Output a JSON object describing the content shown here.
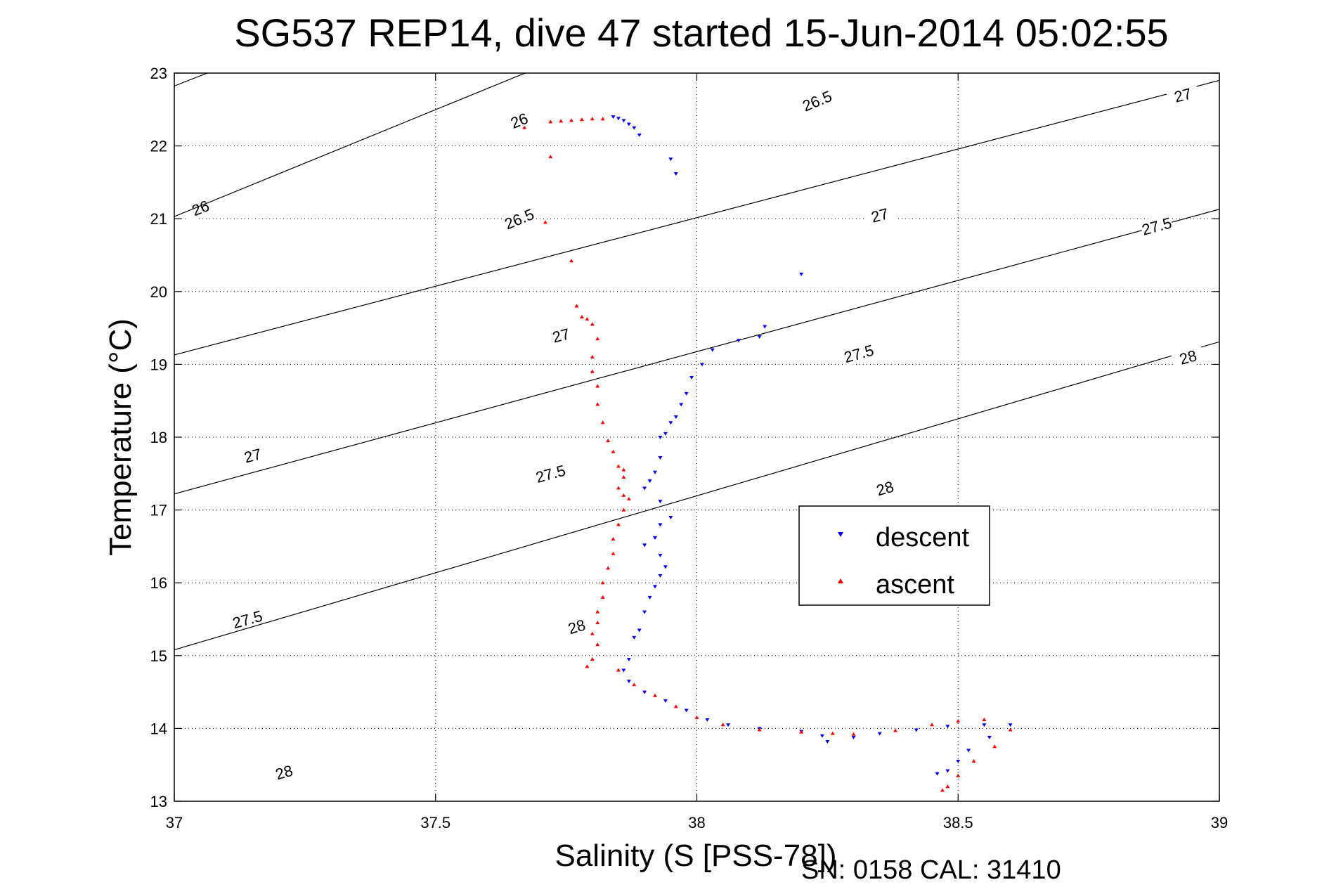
{
  "chart_data": {
    "type": "scatter",
    "title": "SG537 REP14, dive 47 started 15-Jun-2014 05:02:55",
    "xlabel": "Salinity (S [PSS-78])",
    "ylabel": "Temperature (°C)",
    "xlim": [
      37,
      39
    ],
    "ylim": [
      13,
      23
    ],
    "xticks": [
      37,
      37.5,
      38,
      38.5,
      39
    ],
    "xtick_labels": [
      "37",
      "37.5",
      "38",
      "38.5",
      "39"
    ],
    "yticks": [
      13,
      14,
      15,
      16,
      17,
      18,
      19,
      20,
      21,
      22,
      23
    ],
    "ytick_labels": [
      "13",
      "14",
      "15",
      "16",
      "17",
      "18",
      "19",
      "20",
      "21",
      "22",
      "23"
    ],
    "grid": true,
    "legend": {
      "position": "center-right",
      "entries": [
        "descent",
        "ascent"
      ]
    },
    "footer": "SN: 0158  CAL: 31410",
    "colors": {
      "descent": "#0000ff",
      "ascent": "#ff0000",
      "contour": "#000000"
    },
    "contours": [
      {
        "level": "26",
        "points": [
          [
            37.0,
            22.823
          ],
          [
            39.0,
            28.453
          ]
        ],
        "labels": [
          [
            37.66,
            22.35
          ],
          [
            37.05,
            21.15
          ]
        ]
      },
      {
        "level": "26.5",
        "points": [
          [
            37.0,
            21.03
          ],
          [
            39.0,
            26.9
          ]
        ],
        "labels": [
          [
            38.23,
            22.62
          ],
          [
            37.66,
            21.0
          ]
        ]
      },
      {
        "level": "27",
        "points": [
          [
            37.0,
            19.13
          ],
          [
            39.0,
            22.9
          ]
        ],
        "labels": [
          [
            38.93,
            22.7
          ],
          [
            38.35,
            21.05
          ],
          [
            37.74,
            19.4
          ],
          [
            37.15,
            17.75
          ]
        ]
      },
      {
        "level": "27.5",
        "points": [
          [
            37.0,
            17.22
          ],
          [
            39.0,
            21.13
          ]
        ],
        "labels": [
          [
            38.88,
            20.9
          ],
          [
            38.31,
            19.15
          ],
          [
            37.72,
            17.5
          ],
          [
            37.14,
            15.5
          ]
        ]
      },
      {
        "level": "28",
        "points": [
          [
            37.0,
            15.08
          ],
          [
            39.0,
            19.31
          ]
        ],
        "labels": [
          [
            38.94,
            19.1
          ],
          [
            38.36,
            17.3
          ],
          [
            37.77,
            15.4
          ],
          [
            37.21,
            13.4
          ]
        ]
      }
    ],
    "series": [
      {
        "name": "descent",
        "marker": "triangle-down",
        "points": [
          [
            37.84,
            22.4
          ],
          [
            37.85,
            22.38
          ],
          [
            37.86,
            22.35
          ],
          [
            37.87,
            22.3
          ],
          [
            37.88,
            22.25
          ],
          [
            37.89,
            22.15
          ],
          [
            37.95,
            21.82
          ],
          [
            37.96,
            21.62
          ],
          [
            38.2,
            20.24
          ],
          [
            38.13,
            19.52
          ],
          [
            38.12,
            19.38
          ],
          [
            38.08,
            19.33
          ],
          [
            38.03,
            19.2
          ],
          [
            38.01,
            19.0
          ],
          [
            37.99,
            18.82
          ],
          [
            37.98,
            18.6
          ],
          [
            37.97,
            18.45
          ],
          [
            37.96,
            18.28
          ],
          [
            37.95,
            18.2
          ],
          [
            37.94,
            18.05
          ],
          [
            37.93,
            18.0
          ],
          [
            37.93,
            17.72
          ],
          [
            37.92,
            17.52
          ],
          [
            37.91,
            17.4
          ],
          [
            37.9,
            17.3
          ],
          [
            37.93,
            17.12
          ],
          [
            37.95,
            16.9
          ],
          [
            37.93,
            16.8
          ],
          [
            37.92,
            16.62
          ],
          [
            37.9,
            16.52
          ],
          [
            37.93,
            16.38
          ],
          [
            37.94,
            16.22
          ],
          [
            37.93,
            16.1
          ],
          [
            37.92,
            15.95
          ],
          [
            37.91,
            15.8
          ],
          [
            37.9,
            15.6
          ],
          [
            37.89,
            15.35
          ],
          [
            37.88,
            15.25
          ],
          [
            37.87,
            14.95
          ],
          [
            37.86,
            14.8
          ],
          [
            37.87,
            14.65
          ],
          [
            37.9,
            14.5
          ],
          [
            37.94,
            14.38
          ],
          [
            37.98,
            14.25
          ],
          [
            38.02,
            14.12
          ],
          [
            38.06,
            14.05
          ],
          [
            38.12,
            14.0
          ],
          [
            38.2,
            13.96
          ],
          [
            38.24,
            13.9
          ],
          [
            38.25,
            13.82
          ],
          [
            38.3,
            13.88
          ],
          [
            38.35,
            13.93
          ],
          [
            38.42,
            13.98
          ],
          [
            38.48,
            14.03
          ],
          [
            38.55,
            14.05
          ],
          [
            38.6,
            14.05
          ],
          [
            38.56,
            13.88
          ],
          [
            38.52,
            13.7
          ],
          [
            38.5,
            13.55
          ],
          [
            38.48,
            13.42
          ],
          [
            38.46,
            13.38
          ]
        ]
      },
      {
        "name": "ascent",
        "marker": "triangle-up",
        "points": [
          [
            37.67,
            22.25
          ],
          [
            37.72,
            22.33
          ],
          [
            37.74,
            22.34
          ],
          [
            37.76,
            22.35
          ],
          [
            37.78,
            22.36
          ],
          [
            37.8,
            22.37
          ],
          [
            37.82,
            22.37
          ],
          [
            37.72,
            21.85
          ],
          [
            37.71,
            20.95
          ],
          [
            37.76,
            20.42
          ],
          [
            37.77,
            19.8
          ],
          [
            37.78,
            19.65
          ],
          [
            37.79,
            19.62
          ],
          [
            37.8,
            19.55
          ],
          [
            37.81,
            19.35
          ],
          [
            37.8,
            19.1
          ],
          [
            37.8,
            18.9
          ],
          [
            37.81,
            18.7
          ],
          [
            37.81,
            18.45
          ],
          [
            37.82,
            18.2
          ],
          [
            37.83,
            17.95
          ],
          [
            37.84,
            17.8
          ],
          [
            37.85,
            17.6
          ],
          [
            37.86,
            17.55
          ],
          [
            37.86,
            17.45
          ],
          [
            37.85,
            17.3
          ],
          [
            37.86,
            17.2
          ],
          [
            37.87,
            17.15
          ],
          [
            37.86,
            17.0
          ],
          [
            37.85,
            16.8
          ],
          [
            37.84,
            16.6
          ],
          [
            37.84,
            16.4
          ],
          [
            37.83,
            16.2
          ],
          [
            37.82,
            16.0
          ],
          [
            37.82,
            15.8
          ],
          [
            37.81,
            15.6
          ],
          [
            37.81,
            15.45
          ],
          [
            37.8,
            15.3
          ],
          [
            37.81,
            15.15
          ],
          [
            37.8,
            14.95
          ],
          [
            37.79,
            14.85
          ],
          [
            37.85,
            14.8
          ],
          [
            37.88,
            14.6
          ],
          [
            37.92,
            14.45
          ],
          [
            37.96,
            14.3
          ],
          [
            38.0,
            14.15
          ],
          [
            38.05,
            14.05
          ],
          [
            38.12,
            13.98
          ],
          [
            38.2,
            13.95
          ],
          [
            38.26,
            13.93
          ],
          [
            38.3,
            13.92
          ],
          [
            38.38,
            13.97
          ],
          [
            38.45,
            14.05
          ],
          [
            38.5,
            14.1
          ],
          [
            38.55,
            14.12
          ],
          [
            38.6,
            13.98
          ],
          [
            38.57,
            13.75
          ],
          [
            38.53,
            13.55
          ],
          [
            38.5,
            13.35
          ],
          [
            38.48,
            13.2
          ],
          [
            38.47,
            13.15
          ]
        ]
      }
    ]
  }
}
